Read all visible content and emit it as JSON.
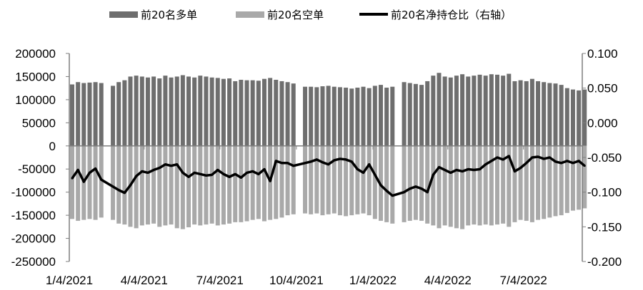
{
  "chart_data": {
    "type": "bar+line",
    "title": "",
    "legend_position": "top",
    "grid": false,
    "x_tick_labels": [
      "1/4/2021",
      "4/4/2021",
      "7/4/2021",
      "10/4/2021",
      "1/4/2022",
      "4/4/2022",
      "7/4/2022"
    ],
    "x_tick_dates": [
      "2021-01-04",
      "2021-04-04",
      "2021-07-04",
      "2021-10-04",
      "2022-01-04",
      "2022-04-04",
      "2022-07-04"
    ],
    "y_left": {
      "range": [
        -250000,
        200000
      ],
      "ticks": [
        "200000",
        "150000",
        "100000",
        "50000",
        "0",
        "-50000",
        "-100000",
        "-150000",
        "-200000",
        "-250000"
      ]
    },
    "y_right": {
      "range": [
        -0.2,
        0.1
      ],
      "ticks": [
        "0.100",
        "0.050",
        "0.000",
        "-0.050",
        "-0.100",
        "-0.150",
        "-0.200"
      ]
    },
    "colors": {
      "long": "#6e6e6e",
      "short": "#a9a9a9",
      "ratio": "#000000",
      "axis": "#7f7f7f"
    },
    "x": [
      "2021-01-04",
      "2021-01-11",
      "2021-01-18",
      "2021-01-25",
      "2021-02-01",
      "2021-02-08",
      "2021-02-15",
      "2021-02-22",
      "2021-03-01",
      "2021-03-08",
      "2021-03-15",
      "2021-03-22",
      "2021-03-29",
      "2021-04-05",
      "2021-04-12",
      "2021-04-19",
      "2021-04-26",
      "2021-05-03",
      "2021-05-10",
      "2021-05-17",
      "2021-05-24",
      "2021-05-31",
      "2021-06-07",
      "2021-06-14",
      "2021-06-21",
      "2021-06-28",
      "2021-07-05",
      "2021-07-12",
      "2021-07-19",
      "2021-07-26",
      "2021-08-02",
      "2021-08-09",
      "2021-08-16",
      "2021-08-23",
      "2021-08-30",
      "2021-09-06",
      "2021-09-13",
      "2021-09-20",
      "2021-09-27",
      "2021-10-04",
      "2021-10-11",
      "2021-10-18",
      "2021-10-25",
      "2021-11-01",
      "2021-11-08",
      "2021-11-15",
      "2021-11-22",
      "2021-11-29",
      "2021-12-06",
      "2021-12-13",
      "2021-12-20",
      "2021-12-27",
      "2022-01-03",
      "2022-01-10",
      "2022-01-17",
      "2022-01-24",
      "2022-01-31",
      "2022-02-07",
      "2022-02-14",
      "2022-02-21",
      "2022-02-28",
      "2022-03-07",
      "2022-03-14",
      "2022-03-21",
      "2022-03-28",
      "2022-04-04",
      "2022-04-11",
      "2022-04-18",
      "2022-04-25",
      "2022-05-02",
      "2022-05-09",
      "2022-05-16",
      "2022-05-23",
      "2022-05-30",
      "2022-06-06",
      "2022-06-13",
      "2022-06-20",
      "2022-06-27",
      "2022-07-04",
      "2022-07-11",
      "2022-07-18",
      "2022-07-25",
      "2022-08-01",
      "2022-08-08",
      "2022-08-15",
      "2022-08-22",
      "2022-08-29",
      "2022-09-05",
      "2022-09-12"
    ],
    "series": [
      {
        "name": "前20名多单",
        "type": "bar",
        "axis": "left",
        "values": [
          133000,
          138000,
          136000,
          137000,
          138000,
          136000,
          null,
          130000,
          138000,
          142000,
          150000,
          152000,
          150000,
          148000,
          150000,
          146000,
          152000,
          148000,
          150000,
          153000,
          150000,
          148000,
          152000,
          150000,
          148000,
          147000,
          145000,
          146000,
          140000,
          143000,
          142000,
          142000,
          141000,
          145000,
          147000,
          143000,
          140000,
          138000,
          135000,
          null,
          128000,
          128000,
          127000,
          129000,
          130000,
          128000,
          127000,
          126000,
          124000,
          126000,
          128000,
          125000,
          130000,
          132000,
          126000,
          128000,
          null,
          138000,
          136000,
          134000,
          132000,
          140000,
          152000,
          158000,
          150000,
          148000,
          152000,
          155000,
          150000,
          152000,
          154000,
          152000,
          155000,
          154000,
          152000,
          156000,
          140000,
          142000,
          140000,
          145000,
          140000,
          138000,
          136000,
          135000,
          132000,
          125000,
          122000,
          120000,
          122000
        ]
      },
      {
        "name": "前20名空单",
        "type": "bar",
        "axis": "left",
        "values": [
          -158000,
          -162000,
          -160000,
          -158000,
          -160000,
          -155000,
          null,
          -160000,
          -168000,
          -170000,
          -175000,
          -178000,
          -172000,
          -170000,
          -168000,
          -175000,
          -172000,
          -170000,
          -178000,
          -180000,
          -176000,
          -170000,
          -172000,
          -170000,
          -168000,
          -172000,
          -170000,
          -168000,
          -165000,
          -165000,
          -163000,
          -160000,
          -158000,
          -163000,
          -160000,
          -158000,
          -155000,
          -150000,
          -148000,
          null,
          -146000,
          -148000,
          -146000,
          -150000,
          -148000,
          -146000,
          -150000,
          -152000,
          -150000,
          -148000,
          -146000,
          -150000,
          -158000,
          -162000,
          -165000,
          -168000,
          null,
          -165000,
          -162000,
          -160000,
          -162000,
          -168000,
          -172000,
          -178000,
          -172000,
          -175000,
          -178000,
          -180000,
          -172000,
          -170000,
          -172000,
          -170000,
          -172000,
          -170000,
          -168000,
          -175000,
          -165000,
          -160000,
          -162000,
          -165000,
          -160000,
          -158000,
          -155000,
          -152000,
          -150000,
          -145000,
          -140000,
          -138000,
          -135000
        ]
      },
      {
        "name": "前20名净持仓比（右轴）",
        "type": "line",
        "axis": "right",
        "values": [
          -0.08,
          -0.068,
          -0.085,
          -0.072,
          -0.066,
          -0.082,
          null,
          -0.092,
          -0.097,
          -0.101,
          -0.09,
          -0.077,
          -0.07,
          -0.072,
          -0.068,
          -0.065,
          -0.06,
          -0.062,
          -0.06,
          -0.072,
          -0.078,
          -0.072,
          -0.074,
          -0.076,
          -0.075,
          -0.068,
          -0.074,
          -0.078,
          -0.074,
          -0.079,
          -0.072,
          -0.07,
          -0.074,
          -0.067,
          -0.084,
          -0.055,
          -0.058,
          -0.058,
          -0.062,
          null,
          -0.058,
          -0.056,
          -0.053,
          -0.057,
          -0.06,
          -0.054,
          -0.052,
          -0.053,
          -0.056,
          -0.067,
          -0.072,
          -0.06,
          -0.075,
          -0.09,
          -0.098,
          -0.105,
          null,
          -0.1,
          -0.095,
          -0.092,
          -0.095,
          -0.1,
          -0.075,
          -0.064,
          -0.068,
          -0.072,
          -0.068,
          -0.07,
          -0.067,
          -0.068,
          -0.067,
          -0.06,
          -0.055,
          -0.05,
          -0.053,
          -0.048,
          -0.07,
          -0.065,
          -0.058,
          -0.05,
          -0.049,
          -0.052,
          -0.05,
          -0.056,
          -0.058,
          -0.055,
          -0.058,
          -0.055,
          -0.062
        ]
      }
    ]
  }
}
